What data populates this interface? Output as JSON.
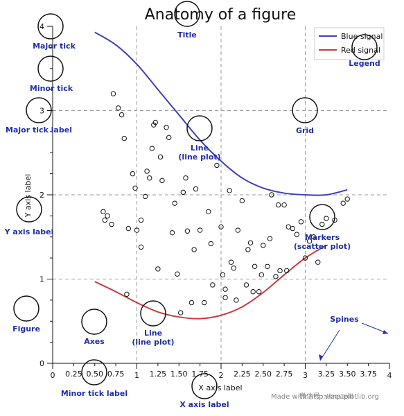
{
  "chart_data": {
    "type": "line",
    "title": "Anatomy of a figure",
    "xlabel": "X axis label",
    "ylabel": "Y axis label",
    "xlim": [
      0,
      4
    ],
    "ylim": [
      0,
      4
    ],
    "x_major_ticks": [
      0,
      1,
      2,
      3,
      4
    ],
    "x_minor_tick_labels": [
      "0.25",
      "0.50",
      "0.75",
      "1.25",
      "1.50",
      "1.75",
      "2.25",
      "2.50",
      "2.75",
      "3.25",
      "3.50",
      "3.75"
    ],
    "x_minor_ticks": [
      0.25,
      0.5,
      0.75,
      1.25,
      1.5,
      1.75,
      2.25,
      2.5,
      2.75,
      3.25,
      3.5,
      3.75
    ],
    "y_major_ticks": [
      0,
      1,
      2,
      3,
      4
    ],
    "y_minor_ticks": [
      0.25,
      0.5,
      0.75,
      1.25,
      1.5,
      1.75,
      2.25,
      2.5,
      2.75,
      3.25,
      3.5,
      3.75
    ],
    "grid": true,
    "legend_position": "top-right",
    "series": [
      {
        "name": "Blue signal",
        "color": "#3b3fbf",
        "x": [
          0.5,
          0.75,
          1.0,
          1.25,
          1.5,
          1.75,
          2.0,
          2.25,
          2.5,
          2.75,
          3.0,
          3.25,
          3.5
        ],
        "y": [
          3.93,
          3.78,
          3.55,
          3.25,
          2.95,
          2.65,
          2.4,
          2.2,
          2.08,
          2.02,
          2.0,
          2.0,
          2.06
        ]
      },
      {
        "name": "Red signal",
        "color": "#d0393d",
        "x": [
          0.5,
          0.75,
          1.0,
          1.25,
          1.5,
          1.75,
          2.0,
          2.25,
          2.5,
          2.75,
          3.0,
          3.25
        ],
        "y": [
          0.97,
          0.85,
          0.72,
          0.61,
          0.55,
          0.53,
          0.57,
          0.67,
          0.84,
          1.05,
          1.25,
          1.4
        ]
      },
      {
        "name": "scatter",
        "type": "scatter",
        "color": "#111111",
        "x": [
          0.72,
          0.78,
          0.82,
          0.85,
          0.95,
          0.98,
          1.05,
          1.12,
          1.18,
          1.2,
          1.22,
          1.25,
          1.3,
          1.35,
          1.38,
          1.42,
          1.48,
          1.55,
          1.6,
          1.65,
          1.7,
          1.75,
          1.8,
          1.85,
          1.9,
          1.95,
          2.0,
          2.05,
          2.1,
          2.15,
          2.2,
          2.25,
          2.3,
          2.35,
          2.4,
          2.45,
          2.5,
          2.55,
          2.6,
          2.65,
          2.7,
          2.75,
          2.8,
          2.85,
          2.9,
          2.95,
          3.0,
          3.05,
          3.1,
          0.6,
          0.62,
          0.65,
          0.7,
          0.9,
          1.0,
          1.05,
          1.1,
          1.15,
          1.28,
          1.45,
          1.58,
          1.68,
          1.88,
          2.02,
          2.12,
          2.32,
          2.48,
          2.58,
          2.68,
          2.78,
          3.15,
          3.2,
          3.25,
          3.35,
          3.45,
          3.5,
          0.88,
          1.52,
          2.38,
          2.05,
          2.18
        ],
        "y": [
          3.2,
          3.03,
          2.95,
          2.67,
          2.25,
          2.08,
          1.38,
          2.28,
          2.55,
          2.83,
          2.86,
          1.12,
          2.17,
          2.8,
          2.68,
          1.55,
          1.06,
          2.03,
          1.57,
          0.72,
          2.07,
          1.58,
          0.72,
          1.8,
          0.93,
          2.35,
          1.62,
          0.78,
          2.05,
          1.13,
          1.58,
          1.93,
          0.93,
          1.43,
          1.15,
          0.85,
          1.4,
          1.15,
          2.0,
          1.03,
          1.1,
          1.88,
          1.62,
          1.6,
          1.53,
          1.68,
          1.25,
          1.45,
          1.5,
          1.8,
          1.7,
          1.75,
          1.65,
          1.6,
          1.58,
          1.7,
          1.98,
          2.2,
          2.45,
          1.9,
          2.2,
          1.35,
          1.42,
          1.05,
          1.2,
          1.35,
          1.05,
          1.48,
          1.88,
          1.1,
          1.2,
          1.65,
          1.72,
          1.7,
          1.9,
          1.95,
          0.82,
          0.6,
          0.85,
          0.88,
          0.75
        ]
      }
    ]
  },
  "annotations": [
    {
      "label": "Major tick",
      "dx": 0.0,
      "dy": 4.0
    },
    {
      "label": "Minor tick",
      "dx": 0.0,
      "dy": 3.75
    },
    {
      "label": "Major tick label",
      "dx": -0.05,
      "dy": 3.0
    },
    {
      "label": "Y axis label",
      "dx": -0.15,
      "dy": 1.85
    },
    {
      "label": "Figure",
      "dx": -0.15,
      "dy": 0.63
    },
    {
      "label": "Axes",
      "dx": 0.5,
      "dy": 0.5
    },
    {
      "label": "Line\n(line plot)",
      "dx": 1.1,
      "dy": 0.58
    },
    {
      "label": "Minor tick label",
      "dx": 0.5,
      "dy": -0.03
    },
    {
      "label": "X axis label",
      "dx": 1.75,
      "dy": -0.25
    },
    {
      "label": "Title",
      "dx": 1.6,
      "dy": 4.0
    },
    {
      "label": "Line\n(line plot)",
      "dx": 1.7,
      "dy": 2.8
    },
    {
      "label": "Grid",
      "dx": 3.0,
      "dy": 3.0
    },
    {
      "label": "Legend",
      "dx": 3.7,
      "dy": 3.8
    },
    {
      "label": "Markers\n(scatter plot)",
      "dx": 3.1,
      "dy": 1.75
    },
    {
      "label": "Spines",
      "dx": 3.45,
      "dy": 0.5
    }
  ],
  "credit": "Made with http://matplotlib.org",
  "watermark": "微信号: vizqueill"
}
